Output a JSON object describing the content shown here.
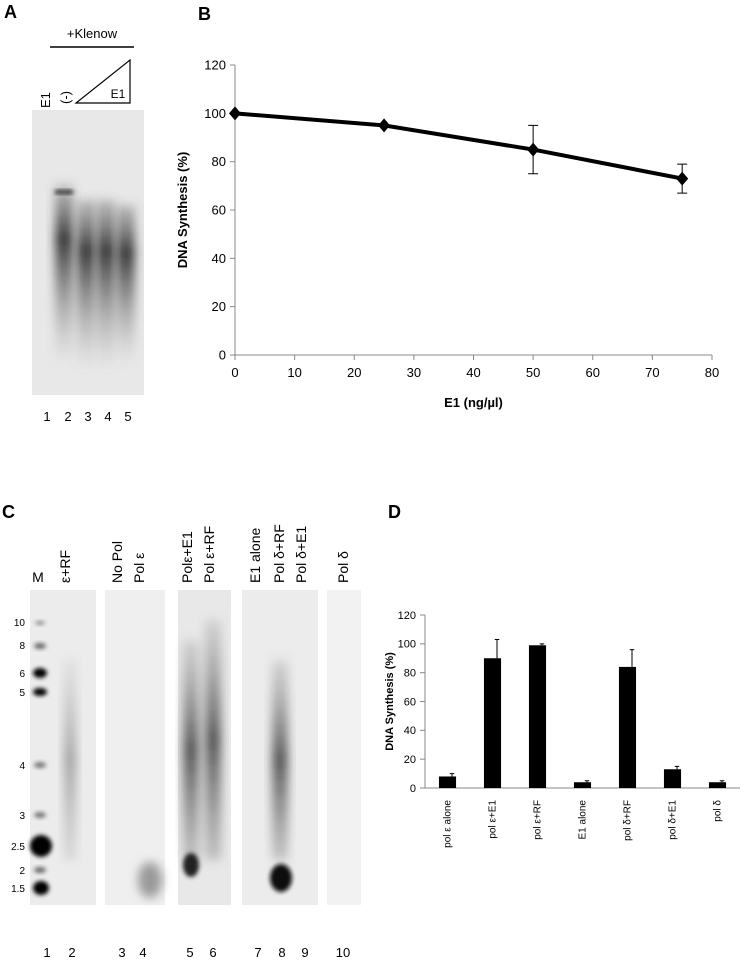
{
  "chart_data": [
    {
      "type": "line",
      "x_label": "E1 (ng/µl)",
      "y_label": "DNA Synthesis (%)",
      "x": [
        0,
        25,
        50,
        75
      ],
      "series": [
        {
          "color": "#000000",
          "values": [
            100,
            95,
            85,
            73
          ],
          "errors": [
            0,
            0,
            10,
            6
          ]
        }
      ],
      "xlim": [
        0,
        80
      ],
      "xticks": [
        0,
        10,
        20,
        30,
        40,
        50,
        60,
        70,
        80
      ],
      "ylim": [
        0,
        120
      ],
      "yticks": [
        0,
        20,
        40,
        60,
        80,
        100,
        120
      ]
    },
    {
      "type": "bar",
      "y_label": "DNA Synthesis (%)",
      "categories": [
        "pol ε alone",
        "pol ε+E1",
        "pol ε+RF",
        "E1 alone",
        "pol δ+RF",
        "pol δ+E1",
        "pol δ"
      ],
      "values": [
        8,
        90,
        99,
        4,
        84,
        13,
        4
      ],
      "errors": [
        2,
        13,
        1,
        1,
        12,
        2,
        1
      ],
      "color": "#000000",
      "ylim": [
        0,
        120
      ],
      "yticks": [
        0,
        20,
        40,
        60,
        80,
        100,
        120
      ]
    }
  ],
  "panels": {
    "A": {
      "label": "A",
      "header": "+Klenow",
      "lanes": [
        "E1",
        "(-)"
      ],
      "triangle": "E1",
      "numbers": [
        "1",
        "2",
        "3",
        "4",
        "5"
      ]
    },
    "B": {
      "label": "B"
    },
    "C": {
      "label": "C",
      "lanes": [
        "M",
        "ε+RF",
        "No Pol",
        "Pol ε",
        "Polε+E1",
        "Pol ε+RF",
        "E1 alone",
        "Pol δ+RF",
        "Pol δ+E1",
        "Pol δ"
      ],
      "markers": [
        "10",
        "8",
        "6",
        "5",
        "4",
        "3",
        "2.5",
        "2",
        "1.5"
      ],
      "numbers": [
        "1",
        "2",
        "3",
        "4",
        "5",
        "6",
        "7",
        "8",
        "9",
        "10"
      ]
    },
    "D": {
      "label": "D"
    }
  }
}
